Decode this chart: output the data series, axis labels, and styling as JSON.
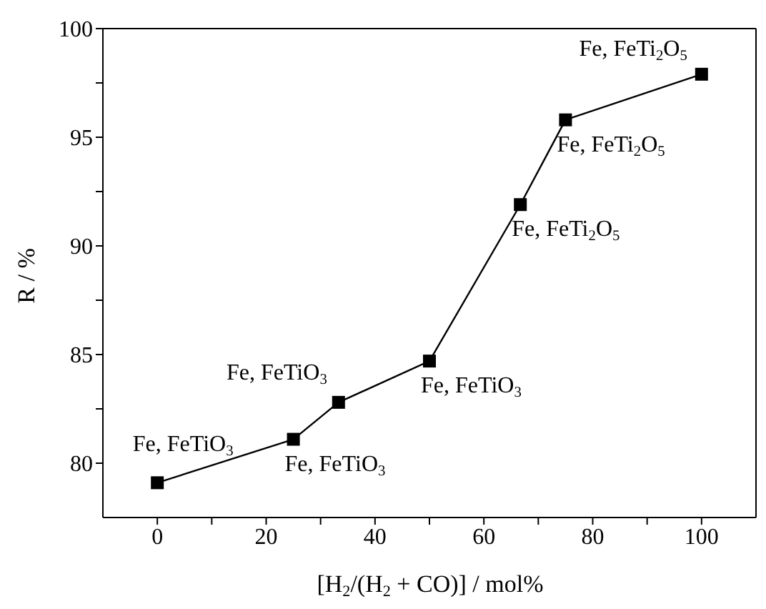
{
  "chart_data": {
    "type": "line",
    "xlabel": "[H$_{2}$/(H$_{2}$ + CO)] / mol%",
    "ylabel": "R / %",
    "x": [
      0,
      25,
      33.3,
      50,
      66.7,
      75,
      100
    ],
    "series": [
      {
        "color": "#000000",
        "values": [
          79.1,
          81.1,
          82.8,
          84.7,
          91.9,
          95.8,
          97.9
        ]
      }
    ],
    "marker": "square",
    "line_style": "solid",
    "grid": false,
    "legend": false,
    "xlim": [
      -10,
      110
    ],
    "xticks": [
      0,
      {
        "value": 10,
        "label": null
      },
      20,
      {
        "value": 30,
        "label": null
      },
      40,
      {
        "value": 50,
        "label": null
      },
      60,
      {
        "value": 70,
        "label": null
      },
      80,
      {
        "value": 90,
        "label": null
      },
      100
    ],
    "ylim": [
      77.5,
      100
    ],
    "yticks": [
      80,
      {
        "value": 82.5,
        "label": null
      },
      85,
      {
        "value": 87.5,
        "label": null
      },
      90,
      {
        "value": 92.5,
        "label": null
      },
      95,
      {
        "value": 97.5,
        "label": null
      },
      100
    ],
    "annotations": [
      {
        "text": "Fe, FeTiO$_{3}$",
        "x": 0,
        "y": 79.1
      },
      {
        "text": "Fe, FeTiO$_{3}$",
        "x": 25,
        "y": 81.1
      },
      {
        "text": "Fe, FeTiO$_{3}$",
        "x": 33.3,
        "y": 82.8
      },
      {
        "text": "Fe, FeTiO$_{3}$",
        "x": 50,
        "y": 84.7
      },
      {
        "text": "Fe, FeTi$_{2}$O$_{5}$",
        "x": 66.7,
        "y": 91.9
      },
      {
        "text": "Fe, FeTi$_{2}$O$_{5}$",
        "x": 75,
        "y": 95.8
      },
      {
        "text": "Fe, FeTi$_{2}$O$_{5}$",
        "x": 100,
        "y": 97.9
      }
    ]
  }
}
